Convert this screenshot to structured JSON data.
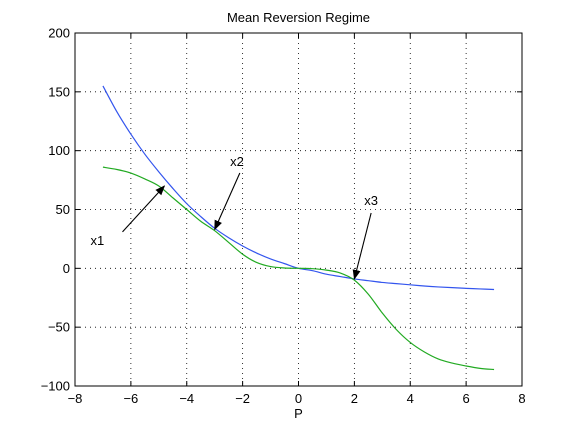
{
  "chart_data": {
    "type": "line",
    "title": "Mean Reversion Regime",
    "xlabel": "P",
    "ylabel": "",
    "xlim": [
      -8,
      8
    ],
    "ylim": [
      -100,
      200
    ],
    "xticks": [
      -8,
      -6,
      -4,
      -2,
      0,
      2,
      4,
      6,
      8
    ],
    "yticks": [
      -100,
      -50,
      0,
      50,
      100,
      150,
      200
    ],
    "xtick_labels": [
      "−8",
      "−6",
      "−4",
      "−2",
      "0",
      "2",
      "4",
      "6",
      "8"
    ],
    "ytick_labels": [
      "−100",
      "−50",
      "0",
      "50",
      "100",
      "150",
      "200"
    ],
    "grid": true,
    "series": [
      {
        "color": "#3355ee",
        "x": [
          -7,
          -6.5,
          -6,
          -5.5,
          -5,
          -4.5,
          -4,
          -3.5,
          -3,
          -2.5,
          -2,
          -1.5,
          -1,
          -0.5,
          0,
          0.5,
          1,
          1.5,
          2,
          2.5,
          3,
          3.5,
          4,
          4.5,
          5,
          5.5,
          6,
          6.5,
          7
        ],
        "y": [
          155,
          133,
          114,
          97,
          82,
          68,
          55,
          44,
          34,
          26,
          19,
          13,
          8,
          4,
          0,
          -2,
          -5,
          -7,
          -9,
          -10.5,
          -12,
          -13,
          -14,
          -15,
          -15.8,
          -16.4,
          -17,
          -17.5,
          -18
        ]
      },
      {
        "color": "#22aa22",
        "x": [
          -7,
          -6.5,
          -6,
          -5.5,
          -5,
          -4.5,
          -4,
          -3.5,
          -3,
          -2.5,
          -2,
          -1.5,
          -1,
          -0.5,
          0,
          0.5,
          1,
          1.5,
          2,
          2.5,
          3,
          3.5,
          4,
          4.5,
          5,
          5.5,
          6,
          6.5,
          7
        ],
        "y": [
          86,
          84,
          81,
          76,
          70,
          60,
          50,
          40,
          32,
          22,
          12,
          5,
          1.5,
          0.3,
          0,
          -0.3,
          -1.5,
          -4,
          -10,
          -22,
          -38,
          -52,
          -63,
          -71,
          -77,
          -80.5,
          -83,
          -85,
          -86
        ]
      }
    ],
    "annotations": [
      {
        "text": "x1",
        "label_x": -7.2,
        "label_y": 20,
        "tail_x": -6.3,
        "tail_y": 31,
        "head_x": -4.8,
        "head_y": 70
      },
      {
        "text": "x2",
        "label_x": -2.2,
        "label_y": 87,
        "tail_x": -2.1,
        "tail_y": 81,
        "head_x": -3,
        "head_y": 33
      },
      {
        "text": "x3",
        "label_x": 2.6,
        "label_y": 54,
        "tail_x": 2.6,
        "tail_y": 47,
        "head_x": 2,
        "head_y": -9
      }
    ]
  }
}
